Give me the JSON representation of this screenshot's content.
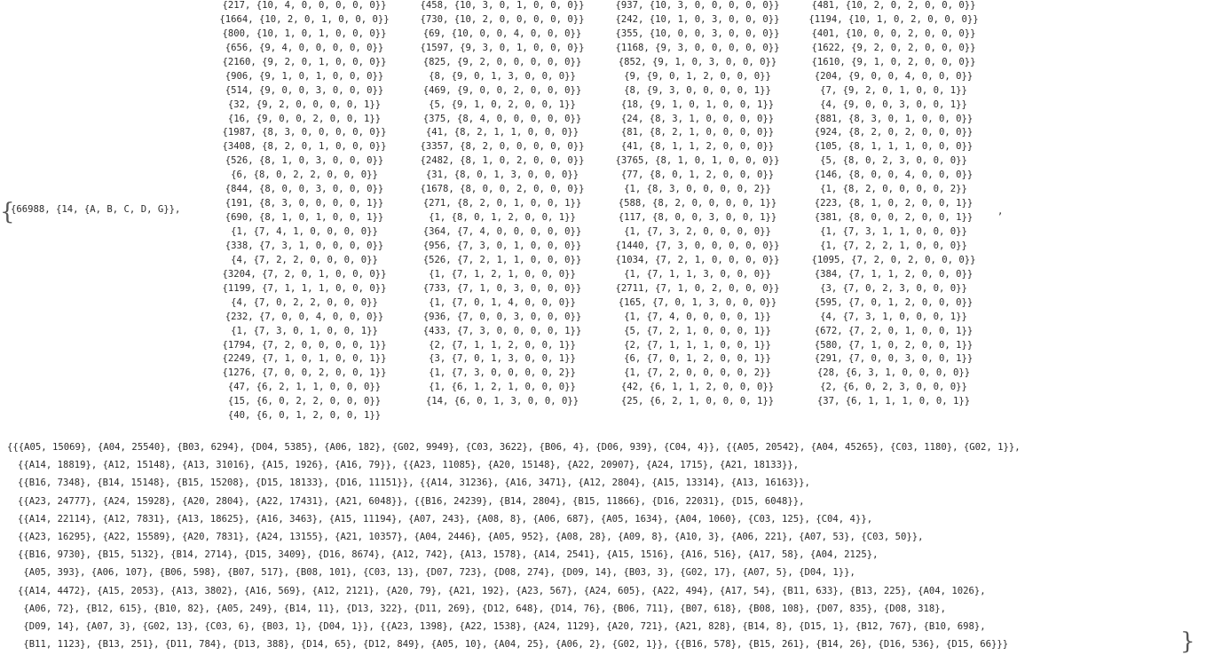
{
  "prefix": "{66988, {14, {A, B, C, D, G}},",
  "after_matrix": ",",
  "matrix": {
    "columns": [
      [
        "{217, {10, 4, 0, 0, 0, 0, 0}}",
        "{1664, {10, 2, 0, 1, 0, 0, 0}}",
        "{800, {10, 1, 0, 1, 0, 0, 0}}",
        "{656, {9, 4, 0, 0, 0, 0, 0}}",
        "{2160, {9, 2, 0, 1, 0, 0, 0}}",
        "{906, {9, 1, 0, 1, 0, 0, 0}}",
        "{514, {9, 0, 0, 3, 0, 0, 0}}",
        "{32, {9, 2, 0, 0, 0, 0, 1}}",
        "{16, {9, 0, 0, 2, 0, 0, 1}}",
        "{1987, {8, 3, 0, 0, 0, 0, 0}}",
        "{3408, {8, 2, 0, 1, 0, 0, 0}}",
        "{526, {8, 1, 0, 3, 0, 0, 0}}",
        "{6, {8, 0, 2, 2, 0, 0, 0}}",
        "{844, {8, 0, 0, 3, 0, 0, 0}}",
        "{191, {8, 3, 0, 0, 0, 0, 1}}",
        "{690, {8, 1, 0, 1, 0, 0, 1}}",
        "{1, {7, 4, 1, 0, 0, 0, 0}}",
        "{338, {7, 3, 1, 0, 0, 0, 0}}",
        "{4, {7, 2, 2, 0, 0, 0, 0}}",
        "{3204, {7, 2, 0, 1, 0, 0, 0}}",
        "{1199, {7, 1, 1, 1, 0, 0, 0}}",
        "{4, {7, 0, 2, 2, 0, 0, 0}}",
        "{232, {7, 0, 0, 4, 0, 0, 0}}",
        "{1, {7, 3, 0, 1, 0, 0, 1}}",
        "{1794, {7, 2, 0, 0, 0, 0, 1}}",
        "{2249, {7, 1, 0, 1, 0, 0, 1}}",
        "{1276, {7, 0, 0, 2, 0, 0, 1}}",
        "{47, {6, 2, 1, 1, 0, 0, 0}}",
        "{15, {6, 0, 2, 2, 0, 0, 0}}",
        "{40, {6, 0, 1, 2, 0, 0, 1}}"
      ],
      [
        "{458, {10, 3, 0, 1, 0, 0, 0}}",
        "{730, {10, 2, 0, 0, 0, 0, 0}}",
        "{69, {10, 0, 0, 4, 0, 0, 0}}",
        "{1597, {9, 3, 0, 1, 0, 0, 0}}",
        "{825, {9, 2, 0, 0, 0, 0, 0}}",
        "{8, {9, 0, 1, 3, 0, 0, 0}}",
        "{469, {9, 0, 0, 2, 0, 0, 0}}",
        "{5, {9, 1, 0, 2, 0, 0, 1}}",
        "{375, {8, 4, 0, 0, 0, 0, 0}}",
        "{41, {8, 2, 1, 1, 0, 0, 0}}",
        "{3357, {8, 2, 0, 0, 0, 0, 0}}",
        "{2482, {8, 1, 0, 2, 0, 0, 0}}",
        "{31, {8, 0, 1, 3, 0, 0, 0}}",
        "{1678, {8, 0, 0, 2, 0, 0, 0}}",
        "{271, {8, 2, 0, 1, 0, 0, 1}}",
        "{1, {8, 0, 1, 2, 0, 0, 1}}",
        "{364, {7, 4, 0, 0, 0, 0, 0}}",
        "{956, {7, 3, 0, 1, 0, 0, 0}}",
        "{526, {7, 2, 1, 1, 0, 0, 0}}",
        "{1, {7, 1, 2, 1, 0, 0, 0}}",
        "{733, {7, 1, 0, 3, 0, 0, 0}}",
        "{1, {7, 0, 1, 4, 0, 0, 0}}",
        "{936, {7, 0, 0, 3, 0, 0, 0}}",
        "{433, {7, 3, 0, 0, 0, 0, 1}}",
        "{2, {7, 1, 1, 2, 0, 0, 1}}",
        "{3, {7, 0, 1, 3, 0, 0, 1}}",
        "{1, {7, 3, 0, 0, 0, 0, 2}}",
        "{1, {6, 1, 2, 1, 0, 0, 0}}",
        "{14, {6, 0, 1, 3, 0, 0, 0}}"
      ],
      [
        "{937, {10, 3, 0, 0, 0, 0, 0}}",
        "{242, {10, 1, 0, 3, 0, 0, 0}}",
        "{355, {10, 0, 0, 3, 0, 0, 0}}",
        "{1168, {9, 3, 0, 0, 0, 0, 0}}",
        "{852, {9, 1, 0, 3, 0, 0, 0}}",
        "{9, {9, 0, 1, 2, 0, 0, 0}}",
        "{8, {9, 3, 0, 0, 0, 0, 1}}",
        "{18, {9, 1, 0, 1, 0, 0, 1}}",
        "{24, {8, 3, 1, 0, 0, 0, 0}}",
        "{81, {8, 2, 1, 0, 0, 0, 0}}",
        "{41, {8, 1, 1, 2, 0, 0, 0}}",
        "{3765, {8, 1, 0, 1, 0, 0, 0}}",
        "{77, {8, 0, 1, 2, 0, 0, 0}}",
        "{1, {8, 3, 0, 0, 0, 0, 2}}",
        "{588, {8, 2, 0, 0, 0, 0, 1}}",
        "{117, {8, 0, 0, 3, 0, 0, 1}}",
        "{1, {7, 3, 2, 0, 0, 0, 0}}",
        "{1440, {7, 3, 0, 0, 0, 0, 0}}",
        "{1034, {7, 2, 1, 0, 0, 0, 0}}",
        "{1, {7, 1, 1, 3, 0, 0, 0}}",
        "{2711, {7, 1, 0, 2, 0, 0, 0}}",
        "{165, {7, 0, 1, 3, 0, 0, 0}}",
        "{1, {7, 4, 0, 0, 0, 0, 1}}",
        "{5, {7, 2, 1, 0, 0, 0, 1}}",
        "{2, {7, 1, 1, 1, 0, 0, 1}}",
        "{6, {7, 0, 1, 2, 0, 0, 1}}",
        "{1, {7, 2, 0, 0, 0, 0, 2}}",
        "{42, {6, 1, 1, 2, 0, 0, 0}}",
        "{25, {6, 2, 1, 0, 0, 0, 1}}"
      ],
      [
        "{481, {10, 2, 0, 2, 0, 0, 0}}",
        "{1194, {10, 1, 0, 2, 0, 0, 0}}",
        "{401, {10, 0, 0, 2, 0, 0, 0}}",
        "{1622, {9, 2, 0, 2, 0, 0, 0}}",
        "{1610, {9, 1, 0, 2, 0, 0, 0}}",
        "{204, {9, 0, 0, 4, 0, 0, 0}}",
        "{7, {9, 2, 0, 1, 0, 0, 1}}",
        "{4, {9, 0, 0, 3, 0, 0, 1}}",
        "{881, {8, 3, 0, 1, 0, 0, 0}}",
        "{924, {8, 2, 0, 2, 0, 0, 0}}",
        "{105, {8, 1, 1, 1, 0, 0, 0}}",
        "{5, {8, 0, 2, 3, 0, 0, 0}}",
        "{146, {8, 0, 0, 4, 0, 0, 0}}",
        "{1, {8, 2, 0, 0, 0, 0, 2}}",
        "{223, {8, 1, 0, 2, 0, 0, 1}}",
        "{381, {8, 0, 0, 2, 0, 0, 1}}",
        "{1, {7, 3, 1, 1, 0, 0, 0}}",
        "{1, {7, 2, 2, 1, 0, 0, 0}}",
        "{1095, {7, 2, 0, 2, 0, 0, 0}}",
        "{384, {7, 1, 1, 2, 0, 0, 0}}",
        "{3, {7, 0, 2, 3, 0, 0, 0}}",
        "{595, {7, 0, 1, 2, 0, 0, 0}}",
        "{4, {7, 3, 1, 0, 0, 0, 1}}",
        "{672, {7, 2, 0, 1, 0, 0, 1}}",
        "{580, {7, 1, 0, 2, 0, 0, 1}}",
        "{291, {7, 0, 0, 3, 0, 0, 1}}",
        "{28, {6, 3, 1, 0, 0, 0, 0}}",
        "{2, {6, 0, 2, 3, 0, 0, 0}}",
        "{37, {6, 1, 1, 1, 0, 0, 1}}"
      ]
    ]
  },
  "bottom_lines": [
    "{{{A05, 15069}, {A04, 25540}, {B03, 6294}, {D04, 5385}, {A06, 182}, {G02, 9949}, {C03, 3622}, {B06, 4}, {D06, 939}, {C04, 4}}, {{A05, 20542}, {A04, 45265}, {C03, 1180}, {G02, 1}},",
    "{{A14, 18819}, {A12, 15148}, {A13, 31016}, {A15, 1926}, {A16, 79}}, {{A23, 11085}, {A20, 15148}, {A22, 20907}, {A24, 1715}, {A21, 18133}},",
    "{{B16, 7348}, {B14, 15148}, {B15, 15208}, {D15, 18133}, {D16, 11151}}, {{A14, 31236}, {A16, 3471}, {A12, 2804}, {A15, 13314}, {A13, 16163}},",
    "{{A23, 24777}, {A24, 15928}, {A20, 2804}, {A22, 17431}, {A21, 6048}}, {{B16, 24239}, {B14, 2804}, {B15, 11866}, {D16, 22031}, {D15, 6048}},",
    "{{A14, 22114}, {A12, 7831}, {A13, 18625}, {A16, 3463}, {A15, 11194}, {A07, 243}, {A08, 8}, {A06, 687}, {A05, 1634}, {A04, 1060}, {C03, 125}, {C04, 4}},",
    "{{A23, 16295}, {A22, 15589}, {A20, 7831}, {A24, 13155}, {A21, 10357}, {A04, 2446}, {A05, 952}, {A08, 28}, {A09, 8}, {A10, 3}, {A06, 221}, {A07, 53}, {C03, 50}},",
    "{{B16, 9730}, {B15, 5132}, {B14, 2714}, {D15, 3409}, {D16, 8674}, {A12, 742}, {A13, 1578}, {A14, 2541}, {A15, 1516}, {A16, 516}, {A17, 58}, {A04, 2125},",
    " {A05, 393}, {A06, 107}, {B06, 598}, {B07, 517}, {B08, 101}, {C03, 13}, {D07, 723}, {D08, 274}, {D09, 14}, {B03, 3}, {G02, 17}, {A07, 5}, {D04, 1}},",
    "{{A14, 4472}, {A15, 2053}, {A13, 3802}, {A16, 569}, {A12, 2121}, {A20, 79}, {A21, 192}, {A23, 567}, {A24, 605}, {A22, 494}, {A17, 54}, {B11, 633}, {B13, 225}, {A04, 1026},",
    " {A06, 72}, {B12, 615}, {B10, 82}, {A05, 249}, {B14, 11}, {D13, 322}, {D11, 269}, {D12, 648}, {D14, 76}, {B06, 711}, {B07, 618}, {B08, 108}, {D07, 835}, {D08, 318},",
    " {D09, 14}, {A07, 3}, {G02, 13}, {C03, 6}, {B03, 1}, {D04, 1}}, {{A23, 1398}, {A22, 1538}, {A24, 1129}, {A20, 721}, {A21, 828}, {B14, 8}, {D15, 1}, {B12, 767}, {B10, 698},",
    " {B11, 1123}, {B13, 251}, {D11, 784}, {D13, 388}, {D14, 65}, {D12, 849}, {A05, 10}, {A04, 25}, {A06, 2}, {G02, 1}}, {{B16, 578}, {B15, 261}, {B14, 26}, {D16, 536}, {D15, 66}}}"
  ]
}
